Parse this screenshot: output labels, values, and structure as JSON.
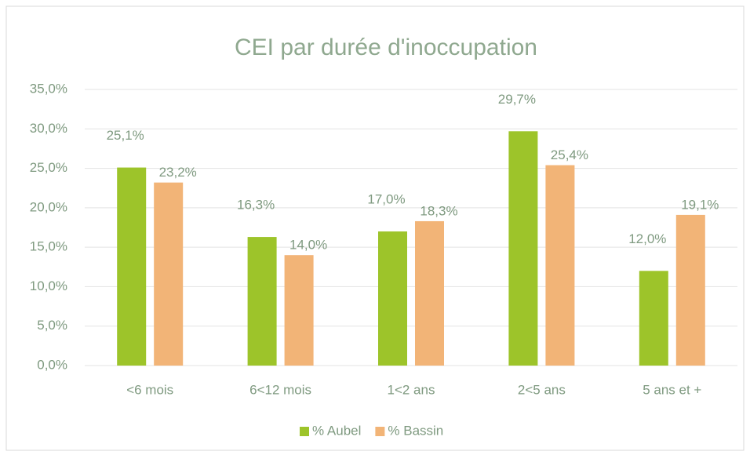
{
  "chart_data": {
    "type": "bar",
    "title": "CEI par durée d'inoccupation",
    "categories": [
      "<6 mois",
      "6<12 mois",
      "1<2 ans",
      "2<5 ans",
      "5 ans et +"
    ],
    "series": [
      {
        "name": "% Aubel",
        "color": "#9dc42a",
        "values": [
          25.1,
          16.3,
          17.0,
          29.7,
          12.0
        ],
        "value_labels": [
          "25,1%",
          "16,3%",
          "17,0%",
          "29,7%",
          "12,0%"
        ]
      },
      {
        "name": "% Bassin",
        "color": "#f2b477",
        "values": [
          23.2,
          14.0,
          18.3,
          25.4,
          19.1
        ],
        "value_labels": [
          "23,2%",
          "14,0%",
          "18,3%",
          "25,4%",
          "19,1%"
        ]
      }
    ],
    "ylim": [
      0,
      35
    ],
    "yticks": [
      {
        "value": 0,
        "label": "0,0%"
      },
      {
        "value": 5,
        "label": "5,0%"
      },
      {
        "value": 10,
        "label": "10,0%"
      },
      {
        "value": 15,
        "label": "15,0%"
      },
      {
        "value": 20,
        "label": "20,0%"
      },
      {
        "value": 25,
        "label": "25,0%"
      },
      {
        "value": 30,
        "label": "30,0%"
      },
      {
        "value": 35,
        "label": "35,0%"
      }
    ],
    "grid": true,
    "legend": "bottom"
  }
}
